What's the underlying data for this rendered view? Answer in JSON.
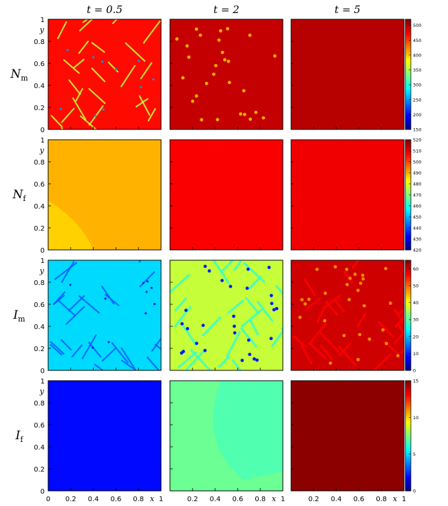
{
  "chart_data": {
    "type": "heatmap",
    "columns": [
      "t = 0.5",
      "t = 2",
      "t = 5"
    ],
    "x_axis": {
      "label": "x",
      "ticks": [
        "0",
        "0.2",
        "0.4",
        "0.6",
        "0.8",
        "1"
      ],
      "range": [
        0,
        1
      ]
    },
    "y_axis": {
      "label": "y",
      "ticks": [
        "0",
        "0.2",
        "0.4",
        "0.6",
        "0.8",
        "1"
      ],
      "range": [
        0,
        1
      ]
    },
    "grid": false,
    "colormap": "jet",
    "rows": [
      {
        "var": "N",
        "sub": "m",
        "colorbar": {
          "range": [
            150,
            520
          ],
          "ticks": [
            "150",
            "200",
            "250",
            "300",
            "350",
            "400",
            "450",
            "500"
          ]
        },
        "panels": [
          {
            "t": 0.5,
            "pattern": "network",
            "base_value": 470,
            "feature_value": 360,
            "spot_value": 250
          },
          {
            "t": 2,
            "pattern": "spots",
            "base_value": 495,
            "spot_value": 410
          },
          {
            "t": 5,
            "pattern": "uniform",
            "base_value": 500
          }
        ]
      },
      {
        "var": "N",
        "sub": "f",
        "colorbar": {
          "range": [
            420,
            520
          ],
          "ticks": [
            "420",
            "430",
            "440",
            "450",
            "460",
            "470",
            "480",
            "490",
            "500",
            "510",
            "520"
          ]
        },
        "panels": [
          {
            "t": 0.5,
            "pattern": "uniform",
            "base_value": 490,
            "corner_value": 487
          },
          {
            "t": 2,
            "pattern": "uniform",
            "base_value": 508
          },
          {
            "t": 5,
            "pattern": "uniform",
            "base_value": 509
          }
        ]
      },
      {
        "var": "I",
        "sub": "m",
        "colorbar": {
          "range": [
            0,
            65
          ],
          "ticks": [
            "0",
            "10",
            "20",
            "30",
            "40",
            "50",
            "60"
          ]
        },
        "panels": [
          {
            "t": 0.5,
            "pattern": "network",
            "base_value": 22,
            "feature_value": 14,
            "spot_value": 10
          },
          {
            "t": 2,
            "pattern": "network-spots",
            "base_value": 37,
            "feature_value": 28,
            "spot_value": 10
          },
          {
            "t": 5,
            "pattern": "network-spots",
            "base_value": 60,
            "feature_value": 57,
            "spot_value": 48
          }
        ]
      },
      {
        "var": "I",
        "sub": "f",
        "colorbar": {
          "range": [
            0,
            15
          ],
          "ticks": [
            "0",
            "5",
            "10",
            "15"
          ]
        },
        "panels": [
          {
            "t": 0.5,
            "pattern": "uniform",
            "base_value": 2.0
          },
          {
            "t": 2,
            "pattern": "uniform",
            "base_value": 7.2,
            "region_value": 6.8
          },
          {
            "t": 5,
            "pattern": "uniform",
            "base_value": 14.8
          }
        ]
      }
    ]
  }
}
